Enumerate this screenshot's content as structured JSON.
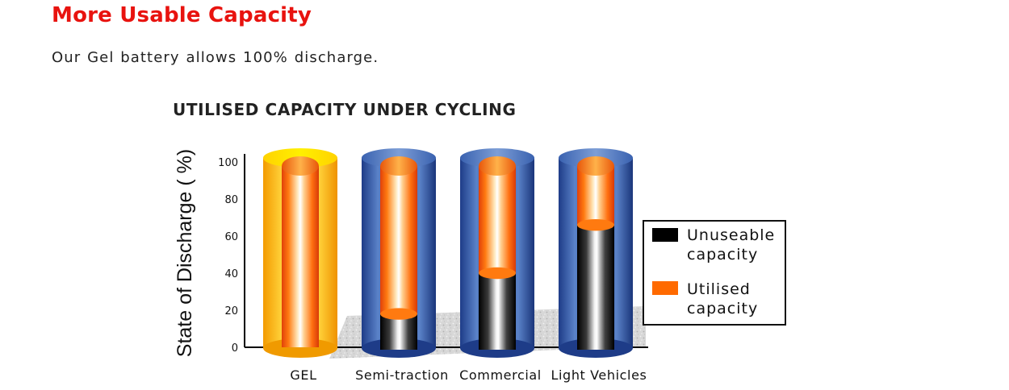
{
  "heading": "More Usable Capacity",
  "intro": "Our  Gel battery allows 100% discharge.",
  "chart_data": {
    "type": "bar",
    "title": "UTILISED CAPACITY UNDER CYCLING",
    "xlabel": "",
    "ylabel": "State of Discharge ( %)",
    "ylim": [
      0,
      100
    ],
    "yticks": [
      "0",
      "20",
      "40",
      "60",
      "80",
      "100"
    ],
    "categories": [
      "GEL",
      "Semi-traction",
      "Commercial",
      "Light Vehicles"
    ],
    "stacked": true,
    "series": [
      {
        "name": "Unuseable capacity",
        "values": [
          0,
          18,
          40,
          66
        ]
      },
      {
        "name": "Utilised capacity",
        "values": [
          100,
          82,
          60,
          34
        ]
      }
    ],
    "legend": {
      "position": "right",
      "items": [
        {
          "line1": "Unuseable",
          "line2": "capacity",
          "color": "#000000"
        },
        {
          "line1": "Utilised",
          "line2": "capacity",
          "color": "#ff6a00"
        }
      ]
    },
    "colors": {
      "unusable": "#000000",
      "utilised": "#ff6a00",
      "casing": "#2a4a9a",
      "gel_casing": "#f7a800"
    }
  }
}
